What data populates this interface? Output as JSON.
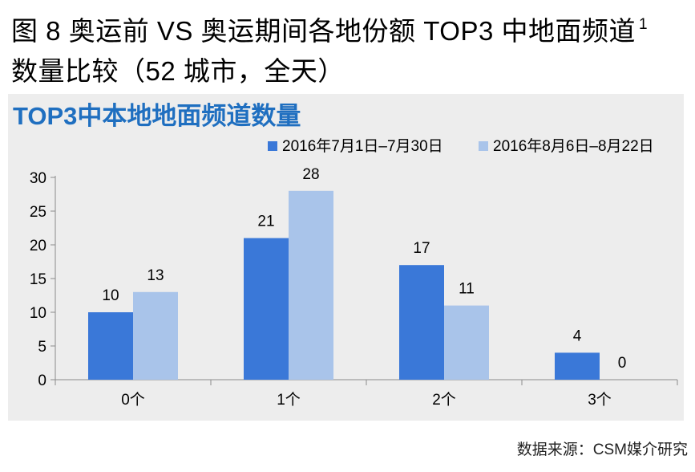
{
  "page": {
    "title_line1": "图 8 奥运前 VS 奥运期间各地份额 TOP3 中地面频道",
    "title_sup": "1",
    "title_line2": "数量比较（52 城市，全天）",
    "source": "数据来源：CSM媒介研究"
  },
  "colors": {
    "series1": "#3a78d8",
    "series2": "#a9c4ea",
    "heading": "#1f6fc0",
    "panel": "#ededed"
  },
  "chart_data": {
    "type": "bar",
    "title": "TOP3中本地地面频道数量",
    "categories": [
      "0个",
      "1个",
      "2个",
      "3个"
    ],
    "series": [
      {
        "name": "2016年7月1日–7月30日",
        "values": [
          10,
          21,
          17,
          4
        ],
        "color": "#3a78d8"
      },
      {
        "name": "2016年8月6日–8月22日",
        "values": [
          13,
          28,
          11,
          0
        ],
        "color": "#a9c4ea"
      }
    ],
    "yticks": [
      0,
      5,
      10,
      15,
      20,
      25,
      30
    ],
    "ylim": [
      0,
      30
    ],
    "legend": "top-right",
    "grid": false
  }
}
